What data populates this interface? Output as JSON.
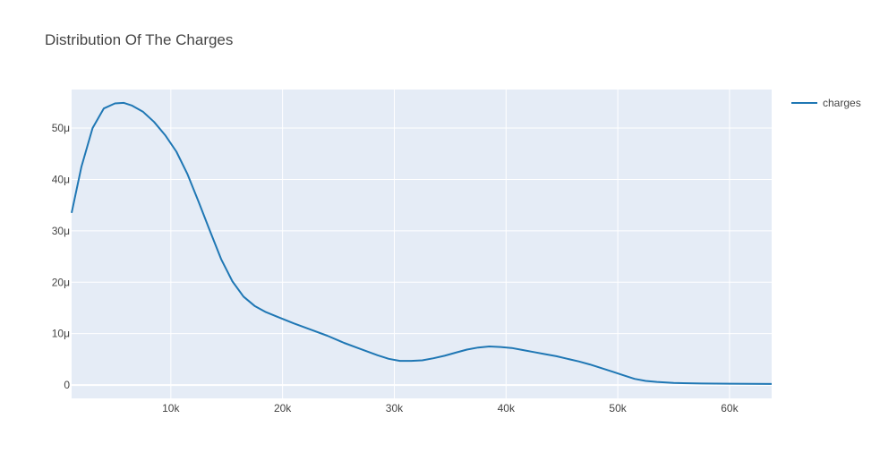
{
  "chart_data": {
    "type": "line",
    "title": "Distribution Of The Charges",
    "xlabel": "",
    "ylabel": "",
    "xlim": [
      1122,
      63770
    ],
    "ylim": [
      -2.6e-06,
      5.75e-05
    ],
    "x_ticks": [
      10000,
      20000,
      30000,
      40000,
      50000,
      60000
    ],
    "x_tick_labels": [
      "10k",
      "20k",
      "30k",
      "40k",
      "50k",
      "60k"
    ],
    "y_ticks": [
      0,
      1e-05,
      2e-05,
      3e-05,
      4e-05,
      5e-05
    ],
    "y_tick_labels": [
      "0",
      "10μ",
      "20μ",
      "30μ",
      "40μ",
      "50μ"
    ],
    "grid": true,
    "legend_position": "top-right",
    "colors": {
      "plot_bg": "#e5ecf6",
      "grid": "#ffffff",
      "line": "#1f77b4"
    },
    "series": [
      {
        "name": "charges",
        "x": [
          1122,
          2000,
          3000,
          4000,
          5000,
          5800,
          6500,
          7500,
          8500,
          9500,
          10500,
          11500,
          12500,
          13500,
          14500,
          15500,
          16500,
          17500,
          18500,
          19500,
          21000,
          22500,
          24000,
          25500,
          27000,
          28500,
          29500,
          30500,
          31500,
          32500,
          33500,
          34500,
          35500,
          36500,
          37500,
          38500,
          39500,
          40500,
          41500,
          42500,
          43500,
          44500,
          45500,
          46500,
          47500,
          48500,
          49500,
          50500,
          51500,
          52500,
          53500,
          55000,
          57500,
          60000,
          63770
        ],
        "y": [
          3.35e-05,
          4.25e-05,
          5e-05,
          5.38e-05,
          5.48e-05,
          5.49e-05,
          5.44e-05,
          5.32e-05,
          5.12e-05,
          4.86e-05,
          4.54e-05,
          4.1e-05,
          3.56e-05,
          3e-05,
          2.45e-05,
          2.02e-05,
          1.72e-05,
          1.54e-05,
          1.42e-05,
          1.33e-05,
          1.2e-05,
          1.08e-05,
          9.6e-06,
          8.2e-06,
          7e-06,
          5.8e-06,
          5.1e-06,
          4.7e-06,
          4.7e-06,
          4.8e-06,
          5.2e-06,
          5.7e-06,
          6.3e-06,
          6.9e-06,
          7.3e-06,
          7.5e-06,
          7.4e-06,
          7.2e-06,
          6.8e-06,
          6.4e-06,
          6e-06,
          5.6e-06,
          5.1e-06,
          4.6e-06,
          4e-06,
          3.3e-06,
          2.6e-06,
          1.9e-06,
          1.2e-06,
          8e-07,
          6e-07,
          4e-07,
          3e-07,
          2.5e-07,
          2e-07
        ]
      }
    ]
  }
}
